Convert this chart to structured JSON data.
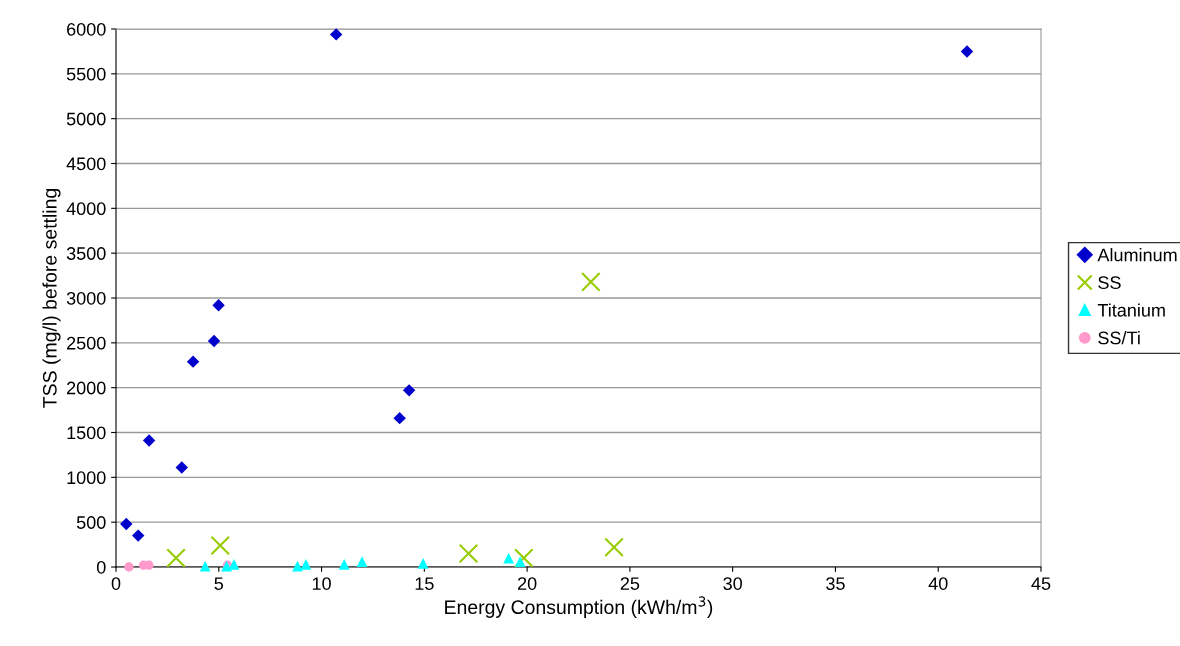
{
  "chart_data": {
    "type": "scatter",
    "xlabel": "Energy Consumption (kWh/m$^{3}$)",
    "ylabel": "TSS (mg/l) before settling",
    "xlim": [
      0,
      45
    ],
    "xticks": [
      0,
      5,
      10,
      15,
      20,
      25,
      30,
      35,
      40,
      45
    ],
    "ylim": [
      0,
      6000
    ],
    "yticks": [
      0,
      500,
      1000,
      1500,
      2000,
      2500,
      3000,
      3500,
      4000,
      4500,
      5000,
      5500,
      6000
    ],
    "grid": "y",
    "legend": "right",
    "series": [
      {
        "name": "Aluminum",
        "color": "#0000cc",
        "marker": "diamond",
        "x": [
          0.5,
          1.08,
          1.61,
          3.2,
          3.75,
          4.77,
          4.99,
          10.71,
          13.8,
          14.26,
          41.4
        ],
        "values": [
          480,
          350,
          1410,
          1110,
          2290,
          2520,
          2920,
          5940,
          1660,
          1970,
          5750
        ]
      },
      {
        "name": "SS",
        "color": "#99cc00",
        "marker": "cross",
        "x": [
          2.92,
          5.07,
          17.15,
          19.84,
          23.1,
          24.23
        ],
        "values": [
          100,
          240,
          150,
          100,
          3180,
          220
        ]
      },
      {
        "name": "Titanium",
        "color": "#00ffff",
        "marker": "triangle",
        "x": [
          4.34,
          5.38,
          5.74,
          8.83,
          9.24,
          11.1,
          11.97,
          14.94,
          19.1,
          19.66
        ],
        "values": [
          10,
          10,
          30,
          10,
          30,
          30,
          60,
          40,
          100,
          60
        ]
      },
      {
        "name": "SS/Ti",
        "color": "#ff99cc",
        "marker": "circle",
        "x": [
          0.63,
          1.34,
          1.6,
          5.42
        ],
        "values": [
          0,
          20,
          20,
          20
        ]
      }
    ]
  }
}
